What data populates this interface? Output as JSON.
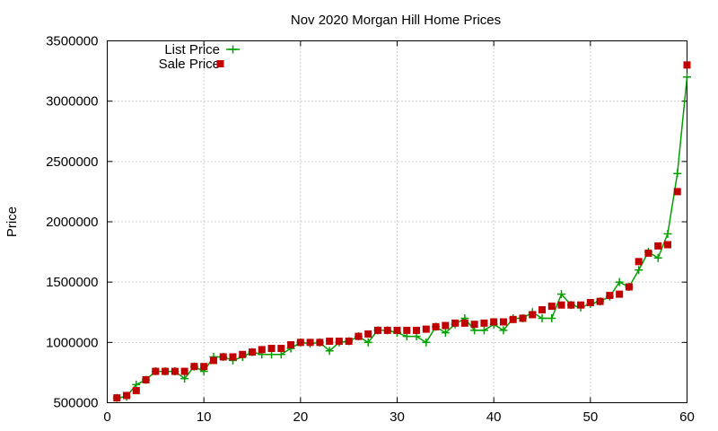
{
  "chart_data": {
    "type": "line",
    "title": "Nov 2020 Morgan Hill Home Prices",
    "xlabel": "",
    "ylabel": "Price",
    "xlim": [
      0,
      60
    ],
    "ylim": [
      500000,
      3500000
    ],
    "xticks": [
      "0",
      "10",
      "20",
      "30",
      "40",
      "50",
      "60"
    ],
    "yticks": [
      "500000",
      "1000000",
      "1500000",
      "2000000",
      "2500000",
      "3000000",
      "3500000"
    ],
    "grid": true,
    "legend_position": "top-left",
    "x": [
      1,
      2,
      3,
      4,
      5,
      6,
      7,
      8,
      9,
      10,
      11,
      12,
      13,
      14,
      15,
      16,
      17,
      18,
      19,
      20,
      21,
      22,
      23,
      24,
      25,
      26,
      27,
      28,
      29,
      30,
      31,
      32,
      33,
      34,
      35,
      36,
      37,
      38,
      39,
      40,
      41,
      42,
      43,
      44,
      45,
      46,
      47,
      48,
      49,
      50,
      51,
      52,
      53,
      54,
      55,
      56,
      57,
      58,
      59,
      60
    ],
    "series": [
      {
        "name": "List Price",
        "color": "#00a000",
        "marker": "plus",
        "values": [
          540000,
          550000,
          650000,
          690000,
          760000,
          760000,
          760000,
          700000,
          800000,
          760000,
          880000,
          880000,
          850000,
          880000,
          920000,
          900000,
          900000,
          900000,
          950000,
          1000000,
          990000,
          1000000,
          930000,
          1000000,
          1010000,
          1050000,
          1000000,
          1100000,
          1100000,
          1080000,
          1050000,
          1050000,
          1000000,
          1130000,
          1080000,
          1150000,
          1200000,
          1100000,
          1100000,
          1150000,
          1100000,
          1200000,
          1200000,
          1250000,
          1200000,
          1200000,
          1400000,
          1310000,
          1290000,
          1320000,
          1340000,
          1380000,
          1500000,
          1460000,
          1600000,
          1750000,
          1700000,
          1900000,
          2400000,
          3200000
        ]
      },
      {
        "name": "Sale Price",
        "color": "#c00000",
        "marker": "square",
        "values": [
          540000,
          560000,
          600000,
          690000,
          760000,
          760000,
          760000,
          760000,
          800000,
          800000,
          850000,
          880000,
          880000,
          900000,
          920000,
          940000,
          950000,
          950000,
          980000,
          1000000,
          1000000,
          1000000,
          1010000,
          1010000,
          1010000,
          1050000,
          1070000,
          1100000,
          1100000,
          1100000,
          1100000,
          1100000,
          1110000,
          1130000,
          1140000,
          1160000,
          1160000,
          1150000,
          1160000,
          1170000,
          1170000,
          1190000,
          1200000,
          1230000,
          1270000,
          1300000,
          1310000,
          1310000,
          1310000,
          1330000,
          1340000,
          1390000,
          1400000,
          1460000,
          1670000,
          1740000,
          1800000,
          1810000,
          2250000,
          3300000
        ]
      }
    ]
  }
}
